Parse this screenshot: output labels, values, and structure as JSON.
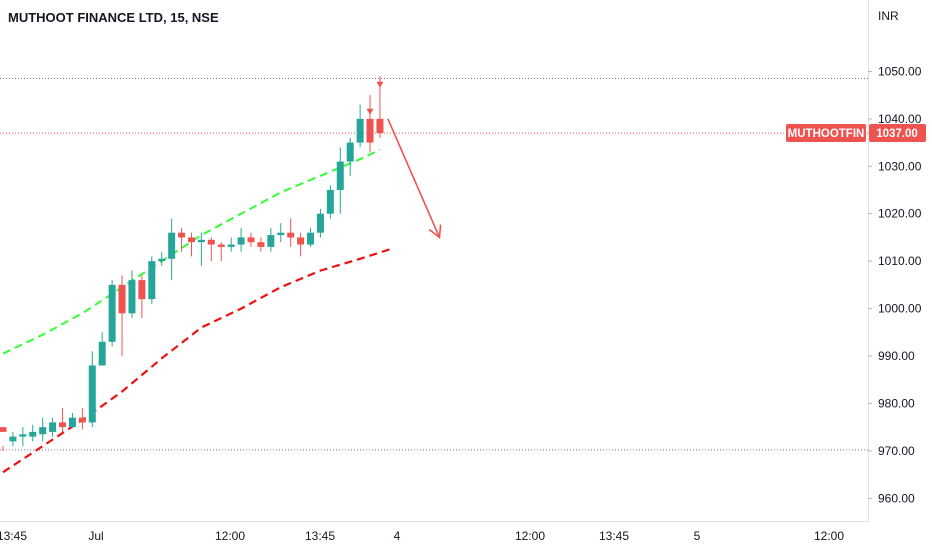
{
  "chart_data": {
    "type": "candlestick",
    "title": "MUTHOOT FINANCE LTD, 15, NSE",
    "currency": "INR",
    "ylim": [
      955,
      1060
    ],
    "y_ticks": [
      "960.00",
      "970.00",
      "980.00",
      "990.00",
      "1000.00",
      "1010.00",
      "1020.00",
      "1030.00",
      "1040.00",
      "1050.00"
    ],
    "x_ticks": [
      "13:45",
      "Jul",
      "12:00",
      "13:45",
      "4",
      "12:00",
      "13:45",
      "5",
      "12:00"
    ],
    "price_badge": {
      "symbol": "MUTHOOTFIN",
      "price": "1037.00",
      "value": 1037
    },
    "horizontal_lines": [
      1048.5,
      970.2
    ],
    "colors": {
      "up": "#26a69a",
      "down": "#ef5350",
      "upper_band": "#33ff33",
      "lower_band": "#ee1111",
      "arrow": "#ef5350"
    },
    "candles": [
      [
        975,
        974,
        971,
        970
      ],
      [
        972,
        973,
        974,
        971
      ],
      [
        973,
        973.5,
        975,
        971
      ],
      [
        973,
        974,
        975.5,
        972
      ],
      [
        973.5,
        975,
        977,
        972
      ],
      [
        974,
        976,
        977,
        973
      ],
      [
        976,
        975,
        979,
        974
      ],
      [
        975,
        977,
        978,
        975
      ],
      [
        977,
        976,
        979,
        974.5
      ],
      [
        976,
        988,
        991,
        975
      ],
      [
        988,
        993,
        995,
        988
      ],
      [
        993,
        1005,
        1006,
        992
      ],
      [
        1005,
        999,
        1007,
        990
      ],
      [
        999,
        1006,
        1008,
        998
      ],
      [
        1006,
        1002,
        1007,
        998
      ],
      [
        1002,
        1010,
        1011,
        1001
      ],
      [
        1010,
        1010.5,
        1012,
        1009
      ],
      [
        1010.5,
        1016,
        1019,
        1006
      ],
      [
        1016,
        1015,
        1017,
        1012
      ],
      [
        1015,
        1014,
        1016,
        1011
      ],
      [
        1014,
        1014.5,
        1016,
        1009
      ],
      [
        1014.5,
        1013.5,
        1015,
        1010
      ],
      [
        1013.5,
        1013,
        1014,
        1010
      ],
      [
        1013,
        1013.5,
        1015,
        1012
      ],
      [
        1013.5,
        1015,
        1017,
        1012
      ],
      [
        1015,
        1014,
        1016,
        1013
      ],
      [
        1014,
        1013,
        1015,
        1012
      ],
      [
        1013,
        1015.5,
        1017,
        1012
      ],
      [
        1015.5,
        1016,
        1018,
        1014
      ],
      [
        1016,
        1015,
        1019,
        1013
      ],
      [
        1015,
        1013.5,
        1016,
        1011
      ],
      [
        1013.5,
        1016,
        1017,
        1013
      ],
      [
        1016,
        1020,
        1021,
        1015
      ],
      [
        1020,
        1025,
        1026,
        1019
      ],
      [
        1025,
        1031,
        1034,
        1020
      ],
      [
        1031,
        1035,
        1036,
        1028
      ],
      [
        1035,
        1040,
        1043,
        1034
      ],
      [
        1040,
        1035,
        1045,
        1033
      ],
      [
        1040,
        1037,
        1049,
        1036
      ]
    ],
    "upper_band": [
      [
        0,
        990.5
      ],
      [
        4,
        994.5
      ],
      [
        8,
        999
      ],
      [
        12,
        1004.5
      ],
      [
        16,
        1010
      ],
      [
        20,
        1015.5
      ],
      [
        24,
        1020
      ],
      [
        28,
        1024.5
      ],
      [
        32,
        1028
      ],
      [
        36,
        1031.5
      ],
      [
        38,
        1033.5
      ]
    ],
    "lower_band": [
      [
        0,
        965.5
      ],
      [
        4,
        971
      ],
      [
        8,
        976.5
      ],
      [
        12,
        982.5
      ],
      [
        16,
        989.5
      ],
      [
        20,
        996
      ],
      [
        24,
        1000
      ],
      [
        28,
        1004.5
      ],
      [
        32,
        1008
      ],
      [
        36,
        1010.5
      ],
      [
        39,
        1012.5
      ]
    ],
    "markers": [
      {
        "candle": 37,
        "price": 1041.5
      },
      {
        "candle": 38,
        "price": 1047.2
      }
    ],
    "arrow": {
      "from": [
        38.8,
        1040
      ],
      "to": [
        44,
        1015
      ]
    }
  }
}
